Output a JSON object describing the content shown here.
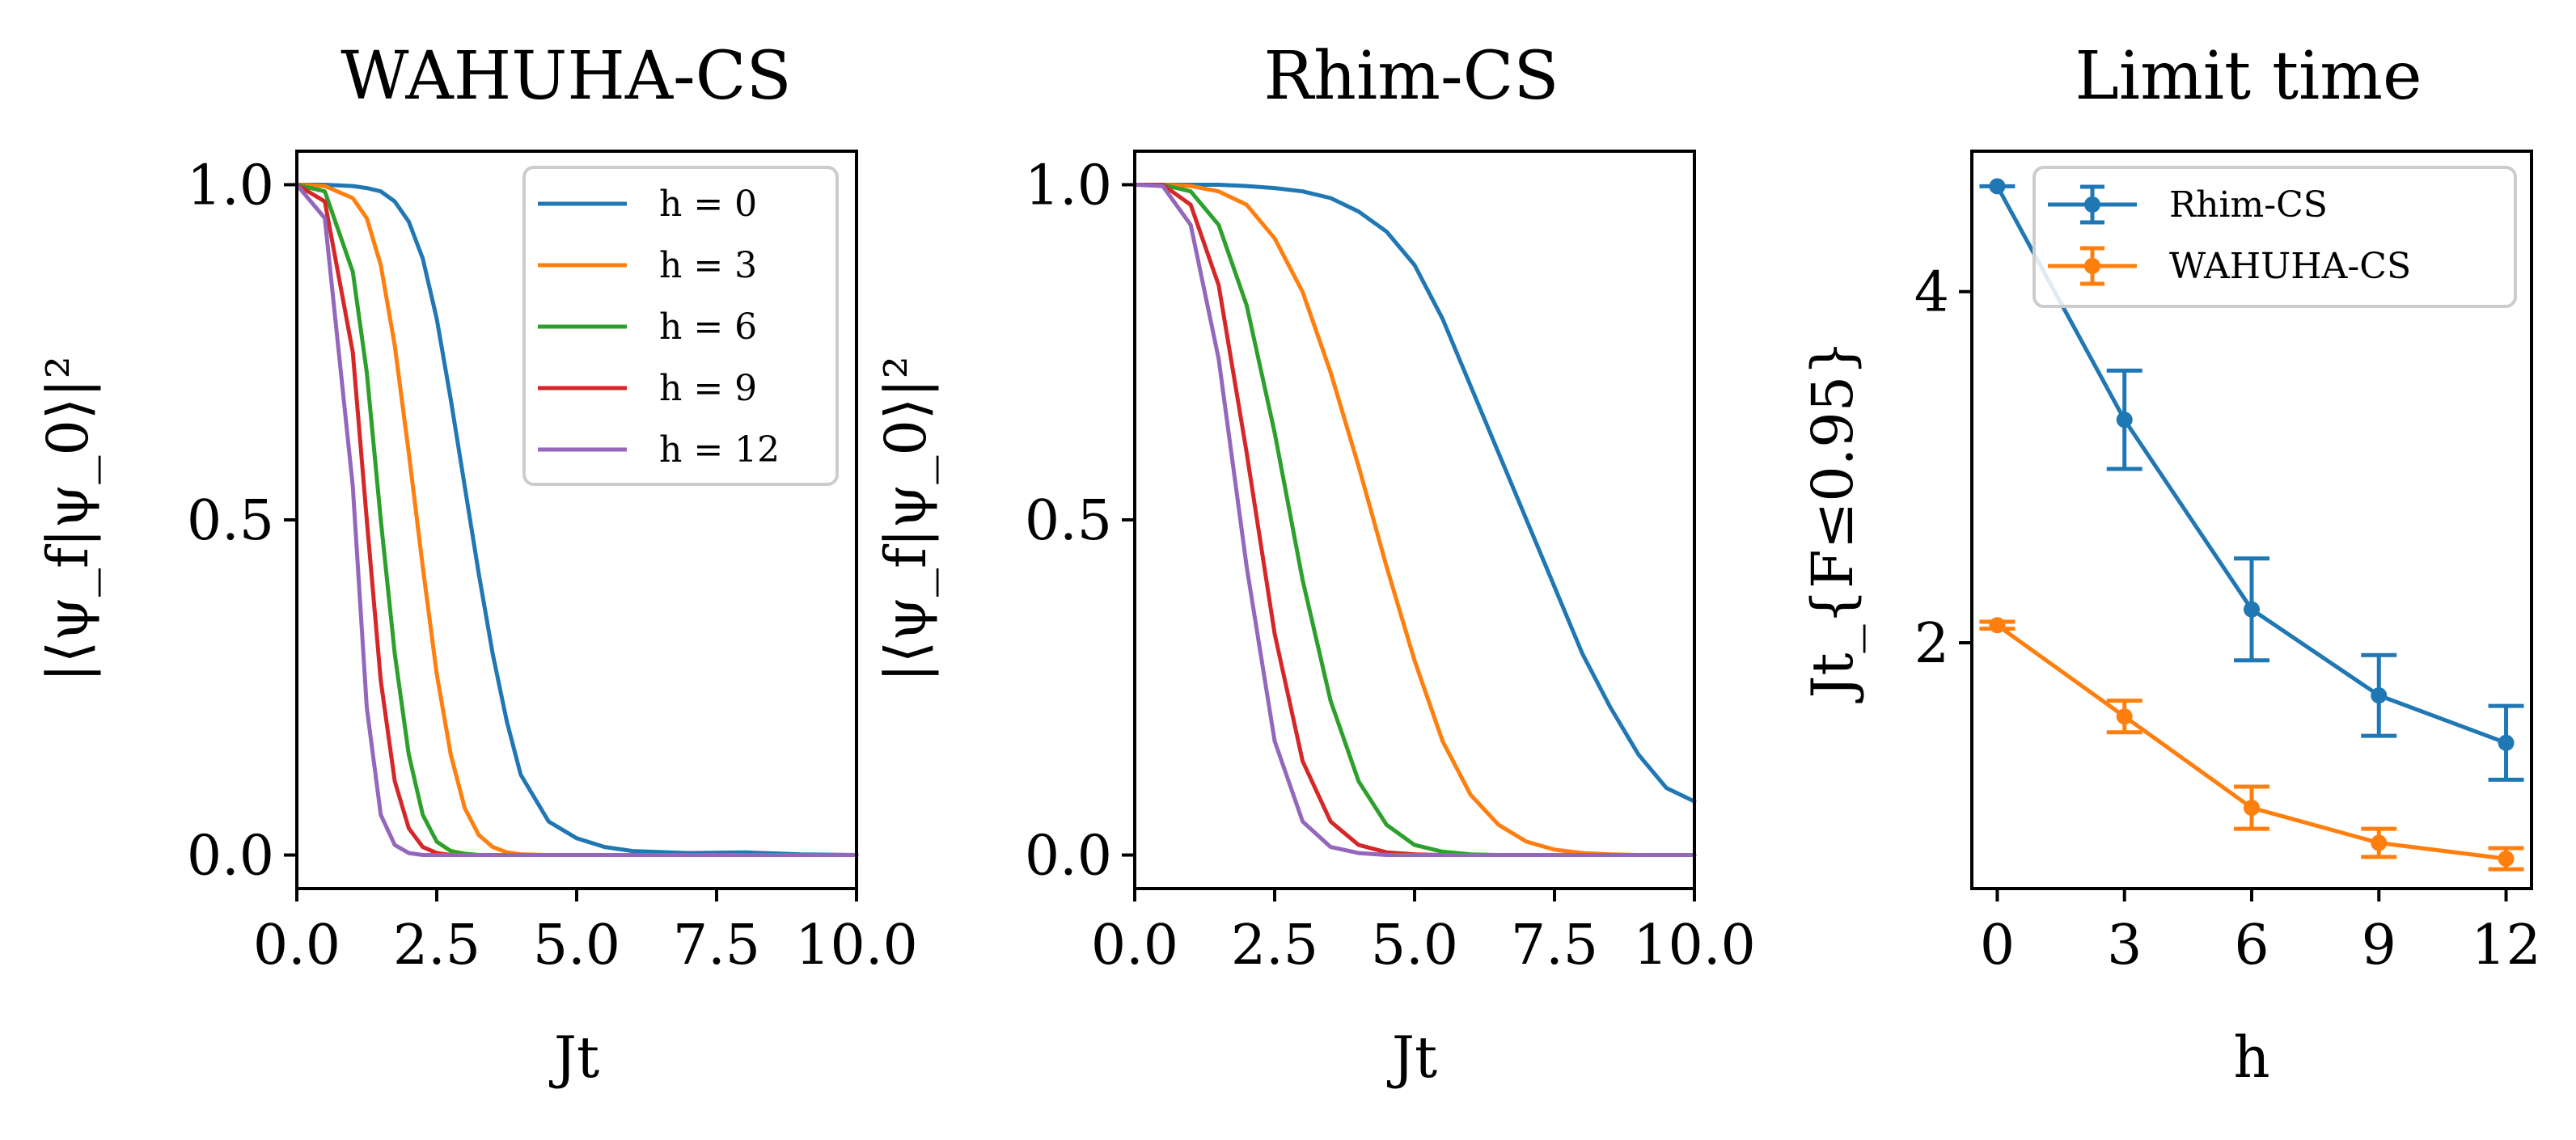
{
  "colors": {
    "h0": "#1f77b4",
    "h3": "#ff7f0e",
    "h6": "#2ca02c",
    "h9": "#d62728",
    "h12": "#9467bd"
  },
  "chart_data": [
    {
      "type": "line",
      "title": "WAHUHA-CS",
      "xlabel": "Jt",
      "ylabel": "|⟨ψ_f|ψ_0⟩|²",
      "xlim": [
        0,
        10
      ],
      "ylim": [
        -0.05,
        1.05
      ],
      "xticks": [
        0,
        2.5,
        5,
        7.5,
        10
      ],
      "xtick_labels": [
        "0.0",
        "2.5",
        "5.0",
        "7.5",
        "10.0"
      ],
      "yticks": [
        0,
        0.5,
        1
      ],
      "ytick_labels": [
        "0.0",
        "0.5",
        "1.0"
      ],
      "legend_position": "top-right",
      "x": [
        0,
        0.5,
        1,
        1.25,
        1.5,
        1.75,
        2,
        2.25,
        2.5,
        2.75,
        3,
        3.25,
        3.5,
        3.75,
        4,
        4.5,
        5,
        5.5,
        6,
        7,
        8,
        9,
        10
      ],
      "series": [
        {
          "name": "h = 0",
          "color_key": "h0",
          "values": [
            1.0,
            1.0,
            0.998,
            0.995,
            0.99,
            0.975,
            0.945,
            0.89,
            0.8,
            0.68,
            0.55,
            0.42,
            0.3,
            0.2,
            0.12,
            0.05,
            0.025,
            0.012,
            0.006,
            0.003,
            0.004,
            0.001,
            0.0
          ]
        },
        {
          "name": "h = 3",
          "color_key": "h3",
          "values": [
            1.0,
            0.998,
            0.98,
            0.95,
            0.88,
            0.76,
            0.6,
            0.43,
            0.27,
            0.15,
            0.07,
            0.03,
            0.012,
            0.004,
            0.001,
            0.0,
            0.0,
            0.0,
            0.0,
            0.0,
            0.0,
            0.0,
            0.0
          ]
        },
        {
          "name": "h = 6",
          "color_key": "h6",
          "values": [
            1.0,
            0.99,
            0.87,
            0.72,
            0.5,
            0.3,
            0.15,
            0.06,
            0.02,
            0.006,
            0.002,
            0.0,
            0.0,
            0.0,
            0.0,
            0.0,
            0.0,
            0.0,
            0.0,
            0.0,
            0.0,
            0.0,
            0.0
          ]
        },
        {
          "name": "h = 9",
          "color_key": "h9",
          "values": [
            1.0,
            0.975,
            0.75,
            0.5,
            0.26,
            0.11,
            0.04,
            0.012,
            0.003,
            0.0,
            0.0,
            0.0,
            0.0,
            0.0,
            0.0,
            0.0,
            0.0,
            0.0,
            0.0,
            0.0,
            0.0,
            0.0,
            0.0
          ]
        },
        {
          "name": "h = 12",
          "color_key": "h12",
          "values": [
            1.0,
            0.95,
            0.55,
            0.22,
            0.06,
            0.015,
            0.003,
            0.0,
            0.0,
            0.0,
            0.0,
            0.0,
            0.0,
            0.0,
            0.0,
            0.0,
            0.0,
            0.0,
            0.0,
            0.0,
            0.0,
            0.0,
            0.0
          ]
        }
      ]
    },
    {
      "type": "line",
      "title": "Rhim-CS",
      "xlabel": "Jt",
      "ylabel": "|⟨ψ_f|ψ_0⟩|²",
      "xlim": [
        0,
        10
      ],
      "ylim": [
        -0.05,
        1.05
      ],
      "xticks": [
        0,
        2.5,
        5,
        7.5,
        10
      ],
      "xtick_labels": [
        "0.0",
        "2.5",
        "5.0",
        "7.5",
        "10.0"
      ],
      "yticks": [
        0,
        0.5,
        1
      ],
      "ytick_labels": [
        "0.0",
        "0.5",
        "1.0"
      ],
      "x": [
        0,
        0.5,
        1,
        1.5,
        2,
        2.5,
        3,
        3.5,
        4,
        4.5,
        5,
        5.5,
        6,
        6.5,
        7,
        7.5,
        8,
        8.5,
        9,
        9.5,
        10
      ],
      "series": [
        {
          "color_key": "h0",
          "values": [
            1.0,
            1.0,
            1.0,
            1.0,
            0.998,
            0.995,
            0.99,
            0.98,
            0.96,
            0.93,
            0.88,
            0.8,
            0.7,
            0.6,
            0.5,
            0.4,
            0.3,
            0.22,
            0.15,
            0.1,
            0.08
          ]
        },
        {
          "color_key": "h3",
          "values": [
            1.0,
            1.0,
            0.998,
            0.99,
            0.97,
            0.92,
            0.84,
            0.72,
            0.58,
            0.43,
            0.29,
            0.17,
            0.09,
            0.045,
            0.02,
            0.008,
            0.003,
            0.001,
            0.0,
            0.0,
            0.0
          ]
        },
        {
          "color_key": "h6",
          "values": [
            1.0,
            1.0,
            0.99,
            0.94,
            0.82,
            0.63,
            0.41,
            0.23,
            0.11,
            0.045,
            0.015,
            0.005,
            0.001,
            0.0,
            0.0,
            0.0,
            0.0,
            0.0,
            0.0,
            0.0,
            0.0
          ]
        },
        {
          "color_key": "h9",
          "values": [
            1.0,
            1.0,
            0.97,
            0.85,
            0.6,
            0.33,
            0.14,
            0.05,
            0.015,
            0.004,
            0.001,
            0.0,
            0.0,
            0.0,
            0.0,
            0.0,
            0.0,
            0.0,
            0.0,
            0.0,
            0.0
          ]
        },
        {
          "color_key": "h12",
          "values": [
            1.0,
            0.998,
            0.94,
            0.74,
            0.43,
            0.17,
            0.05,
            0.012,
            0.003,
            0.0,
            0.0,
            0.0,
            0.0,
            0.0,
            0.0,
            0.0,
            0.0,
            0.0,
            0.0,
            0.0,
            0.0
          ]
        }
      ]
    },
    {
      "type": "line",
      "title": "Limit time",
      "xlabel": "h",
      "ylabel": "Jt_{F≤0.95}",
      "xlim": [
        -0.6,
        12.6
      ],
      "ylim": [
        0.6,
        4.8
      ],
      "xticks": [
        0,
        3,
        6,
        9,
        12
      ],
      "xtick_labels": [
        "0",
        "3",
        "6",
        "9",
        "12"
      ],
      "yticks": [
        2,
        4
      ],
      "ytick_labels": [
        "2",
        "4"
      ],
      "legend_position": "top-right",
      "x": [
        0,
        3,
        6,
        9,
        12
      ],
      "series": [
        {
          "name": "Rhim-CS",
          "color_key": "h0",
          "values": [
            4.6,
            3.27,
            2.19,
            1.7,
            1.43
          ],
          "errors": [
            0.0,
            0.28,
            0.29,
            0.23,
            0.21
          ]
        },
        {
          "name": "WAHUHA-CS",
          "color_key": "h3",
          "values": [
            2.1,
            1.58,
            1.06,
            0.86,
            0.77
          ],
          "errors": [
            0.02,
            0.09,
            0.12,
            0.08,
            0.06
          ]
        }
      ]
    }
  ]
}
